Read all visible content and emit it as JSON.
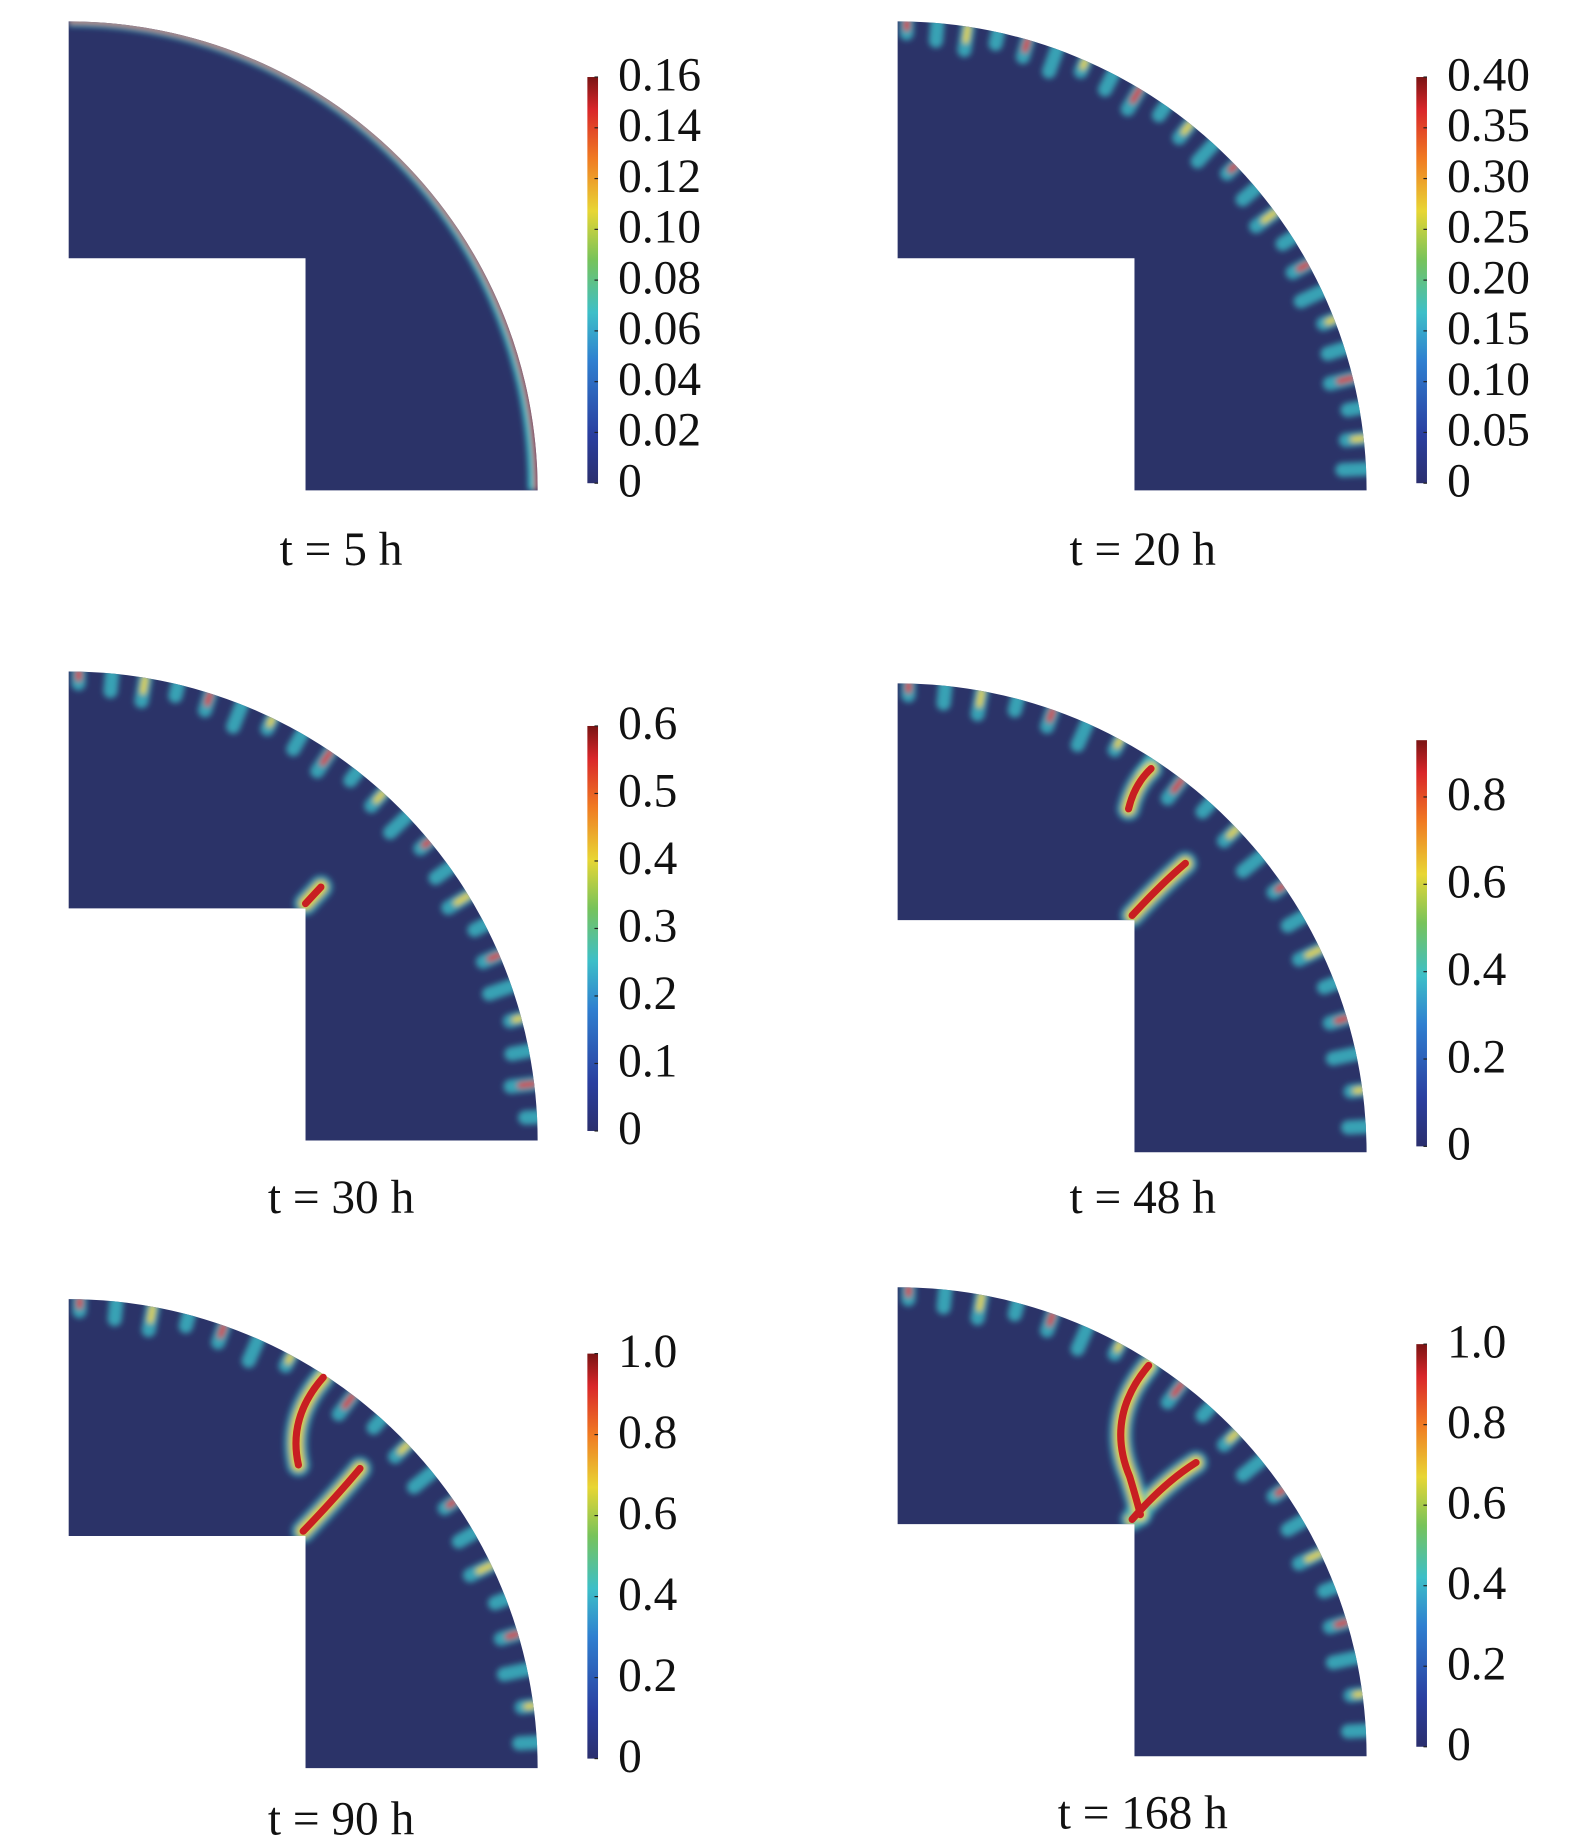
{
  "chart_data": [
    {
      "type": "contour",
      "title": "t = 5 h",
      "colormap": "jet",
      "clim": [
        0,
        0.16
      ],
      "cticks": [
        0,
        0.02,
        0.04,
        0.06,
        0.08,
        {
          "value": 0.1,
          "label": "0.10"
        },
        0.12,
        0.14,
        0.16
      ]
    },
    {
      "type": "contour",
      "title": "t = 20 h",
      "colormap": "jet",
      "clim": [
        0,
        0.4
      ],
      "cticks": [
        0,
        0.05,
        {
          "value": 0.1,
          "label": "0.10"
        },
        0.15,
        {
          "value": 0.2,
          "label": "0.20"
        },
        0.25,
        {
          "value": 0.3,
          "label": "0.30"
        },
        0.35,
        {
          "value": 0.4,
          "label": "0.40"
        }
      ]
    },
    {
      "type": "contour",
      "title": "t = 30 h",
      "colormap": "jet",
      "clim": [
        0,
        0.6
      ],
      "cticks": [
        0,
        0.1,
        0.2,
        0.3,
        0.4,
        0.5,
        0.6
      ]
    },
    {
      "type": "contour",
      "title": "t = 48 h",
      "colormap": "jet",
      "clim": [
        0,
        0.93
      ],
      "cticks": [
        0,
        0.2,
        0.4,
        0.6,
        0.8
      ]
    },
    {
      "type": "contour",
      "title": "t = 90 h",
      "colormap": "jet",
      "clim": [
        0,
        1
      ],
      "cticks": [
        0,
        0.2,
        0.4,
        0.6,
        0.8,
        {
          "value": 1,
          "label": "1.0"
        }
      ]
    },
    {
      "type": "contour",
      "title": "t = 168 h",
      "colormap": "jet",
      "clim": [
        0,
        1
      ],
      "cticks": [
        0,
        0.2,
        0.4,
        0.6,
        0.8,
        {
          "value": 1,
          "label": "1.0"
        }
      ]
    }
  ]
}
